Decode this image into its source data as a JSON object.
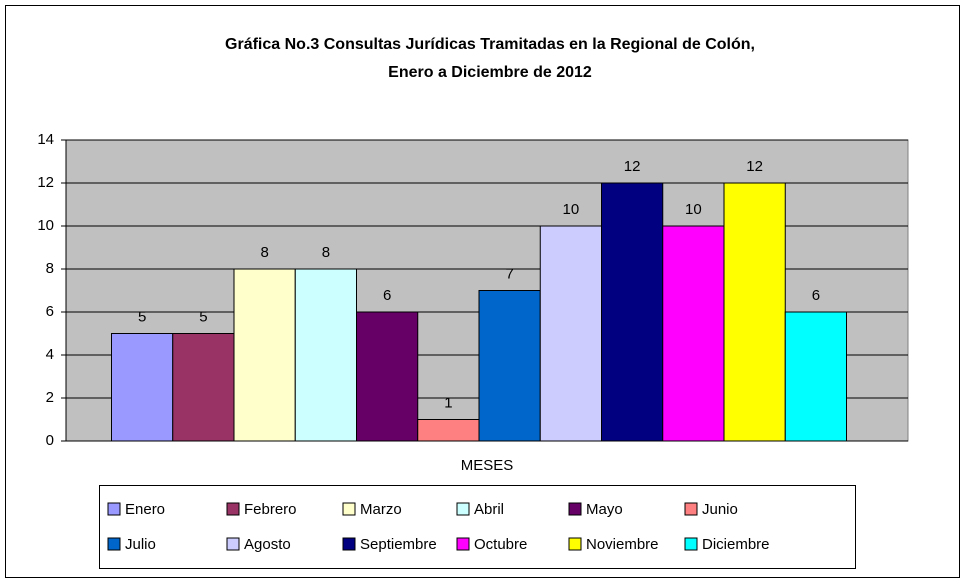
{
  "chart_data": {
    "type": "bar",
    "title": [
      "Gráfica No.3  Consultas Jurídicas Tramitadas en la Regional de Colón,",
      "Enero a Diciembre de 2012"
    ],
    "x_label": "MESES",
    "series": [
      {
        "name": "Enero",
        "color": "#9999ff",
        "values": [
          5
        ]
      },
      {
        "name": "Febrero",
        "color": "#993366",
        "values": [
          5
        ]
      },
      {
        "name": "Marzo",
        "color": "#ffffcc",
        "values": [
          8
        ]
      },
      {
        "name": "Abril",
        "color": "#ccffff",
        "values": [
          8
        ]
      },
      {
        "name": "Mayo",
        "color": "#660066",
        "values": [
          6
        ]
      },
      {
        "name": "Junio",
        "color": "#ff8080",
        "values": [
          1
        ]
      },
      {
        "name": "Julio",
        "color": "#0066cc",
        "values": [
          7
        ]
      },
      {
        "name": "Agosto",
        "color": "#ccccff",
        "values": [
          10
        ]
      },
      {
        "name": "Septiembre",
        "color": "#000080",
        "values": [
          12
        ]
      },
      {
        "name": "Octubre",
        "color": "#ff00ff",
        "values": [
          10
        ]
      },
      {
        "name": "Noviembre",
        "color": "#ffff00",
        "values": [
          12
        ]
      },
      {
        "name": "Diciembre",
        "color": "#00ffff",
        "values": [
          6
        ]
      }
    ],
    "ylim": [
      0,
      14
    ],
    "yticks": [
      0,
      2,
      4,
      6,
      8,
      10,
      12,
      14
    ],
    "grid": true,
    "legend": "bottom",
    "plot_background": "#c0c0c0"
  }
}
